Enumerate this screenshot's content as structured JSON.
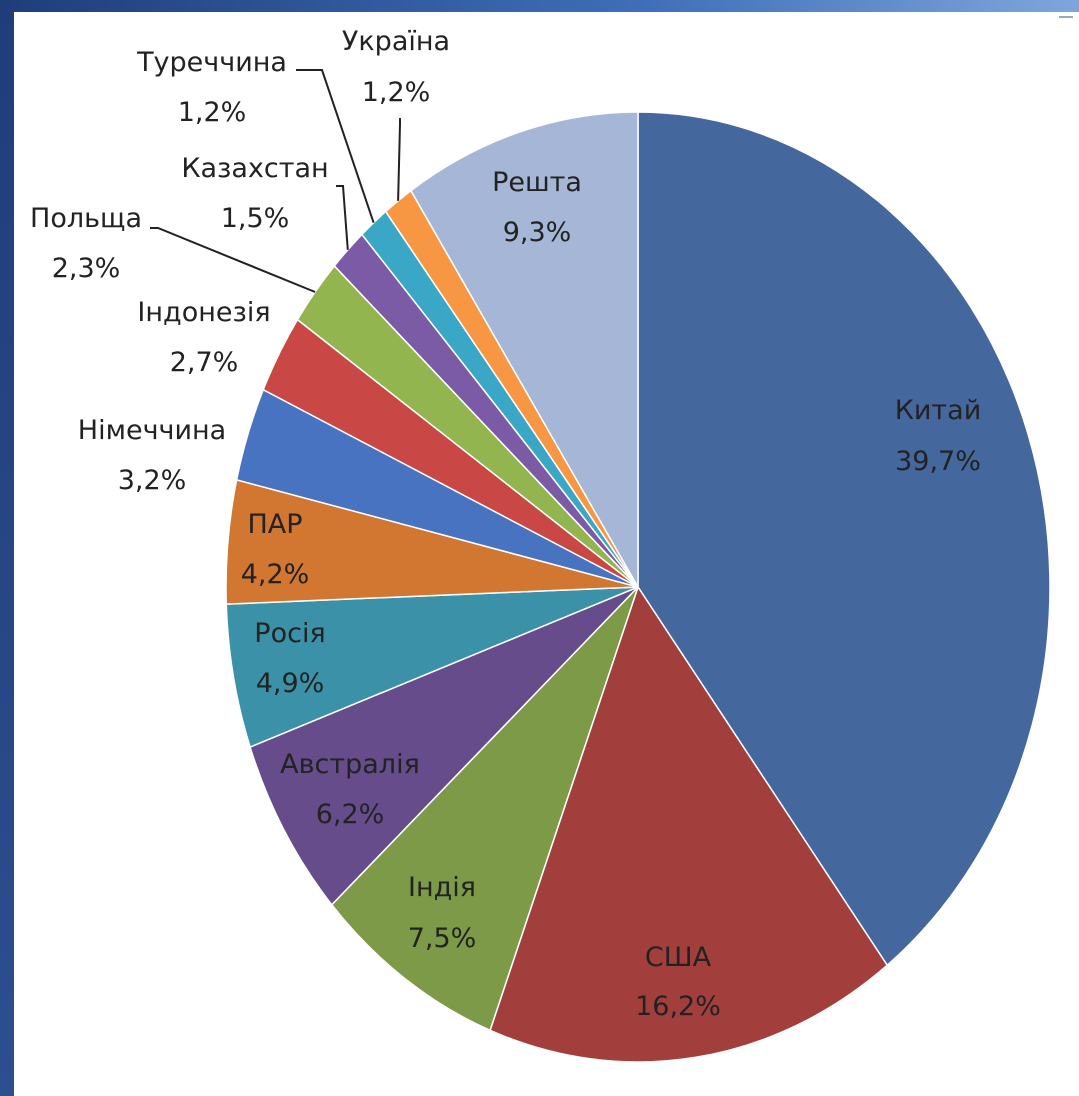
{
  "chart_data": {
    "type": "pie",
    "title": "",
    "slices": [
      {
        "name": "Китай",
        "value": 39.7,
        "label": "39,7%",
        "color": "#44689e"
      },
      {
        "name": "США",
        "value": 16.2,
        "label": "16,2%",
        "color": "#a23f3d"
      },
      {
        "name": "Індія",
        "value": 7.5,
        "label": "7,5%",
        "color": "#7d9a48"
      },
      {
        "name": "Австралія",
        "value": 6.2,
        "label": "6,2%",
        "color": "#664c8a"
      },
      {
        "name": "Росія",
        "value": 4.9,
        "label": "4,9%",
        "color": "#3b92a8"
      },
      {
        "name": "ПАР",
        "value": 4.2,
        "label": "4,2%",
        "color": "#d27732"
      },
      {
        "name": "Німеччина",
        "value": 3.2,
        "label": "3,2%",
        "color": "#4873c0"
      },
      {
        "name": "Індонезія",
        "value": 2.7,
        "label": "2,7%",
        "color": "#c94744"
      },
      {
        "name": "Польща",
        "value": 2.3,
        "label": "2,3%",
        "color": "#93b54f"
      },
      {
        "name": "Казахстан",
        "value": 1.5,
        "label": "1,5%",
        "color": "#7b5aa6"
      },
      {
        "name": "Туреччина",
        "value": 1.2,
        "label": "1,2%",
        "color": "#3aa7c6"
      },
      {
        "name": "Україна",
        "value": 1.2,
        "label": "1,2%",
        "color": "#f79743"
      },
      {
        "name": "Решта",
        "value": 9.3,
        "label": "9,3%",
        "color": "#a5b6d6"
      }
    ],
    "legend": "none",
    "data_labels": "category and percentage"
  }
}
